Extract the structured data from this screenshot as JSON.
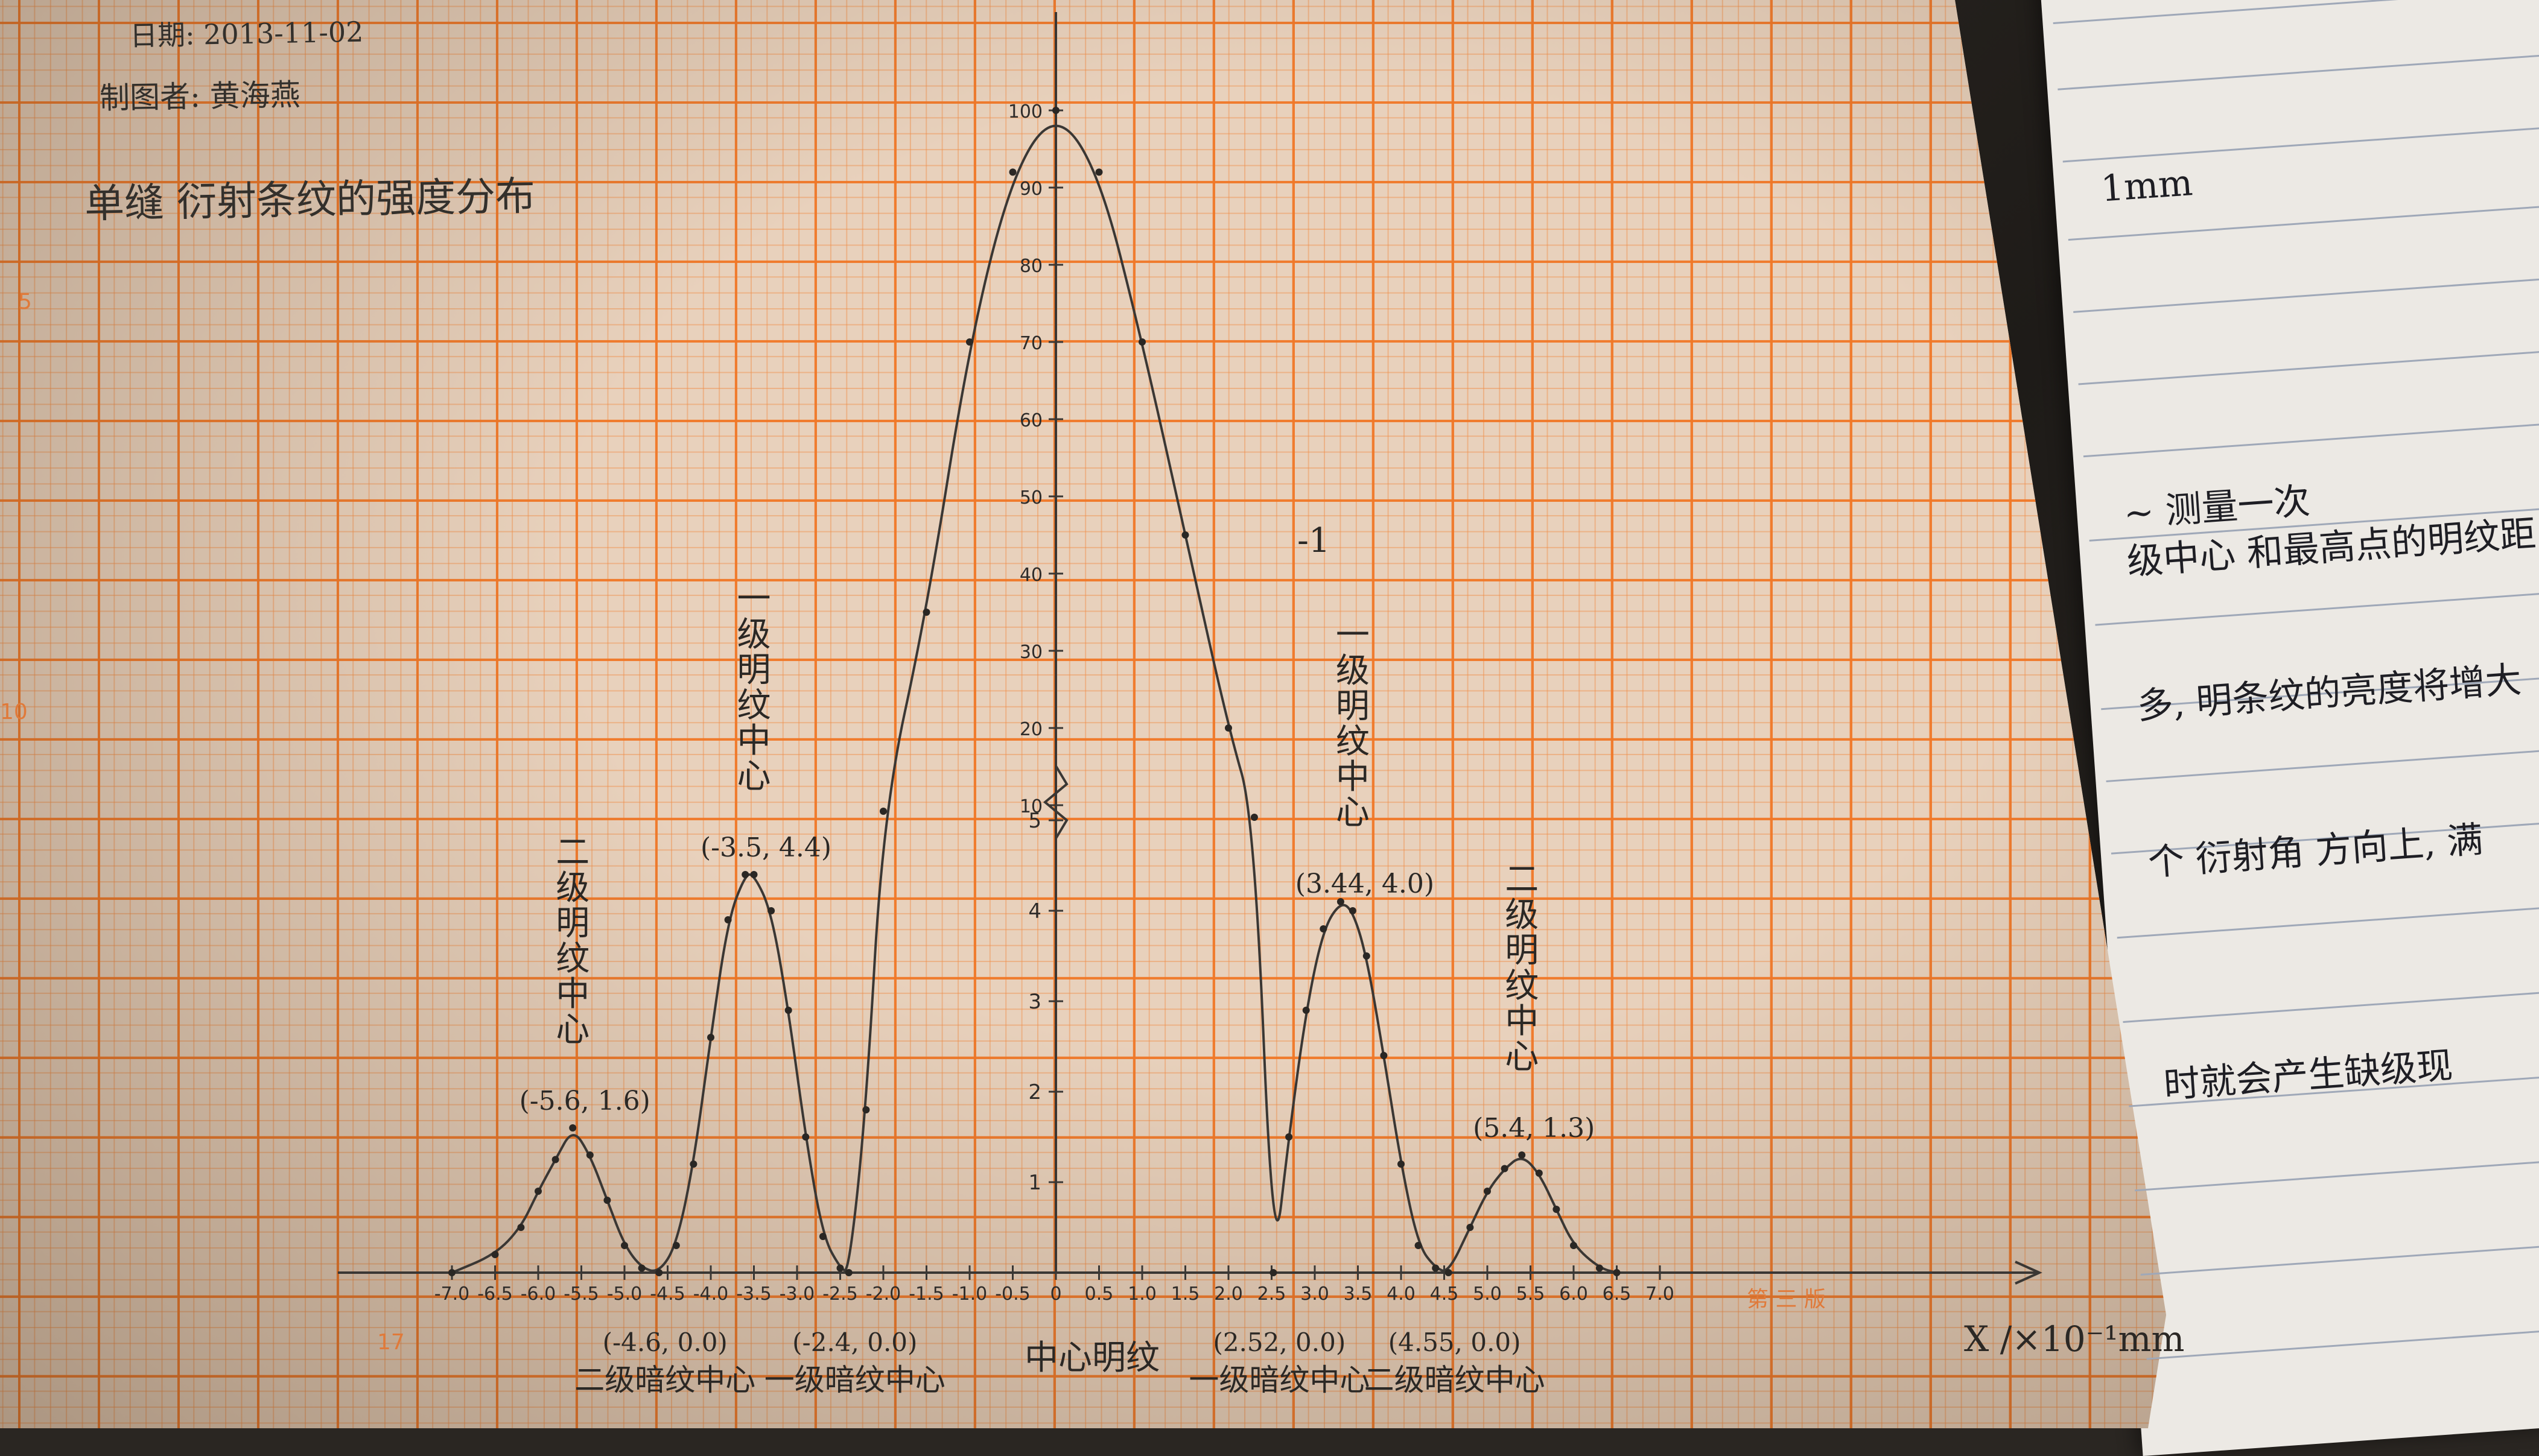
{
  "header": {
    "date": "日期: 2013-11-02",
    "author": "制图者: 黄海燕",
    "title": "单缝 衍射条纹的强度分布"
  },
  "paper_marks": {
    "edge_5": "5",
    "edge_10": "10",
    "corner_17": "17",
    "edition": "第 三 版"
  },
  "notebook": {
    "lines": [
      "1mm",
      "~ 测量一次",
      "级中心 和最高点的明纹距",
      "多, 明条纹的亮度将增大",
      "个 衍射角 方向上, 满",
      "时就会产生缺级现"
    ]
  },
  "colors": {
    "grid_major": "#f07828",
    "pencil": "#3a3734",
    "notebook_line": "#9fa8b8"
  },
  "chart_data": {
    "type": "line",
    "xlabel": "X /×10⁻¹mm",
    "ylabel": "",
    "xlim": [
      -7.0,
      7.0
    ],
    "ylim_lower": [
      0,
      5
    ],
    "ylim_upper": [
      10,
      100
    ],
    "x_ticks": [
      "-7.0",
      "-6.5",
      "-6.0",
      "-5.5",
      "-5.0",
      "-4.5",
      "-4.0",
      "-3.5",
      "-3.0",
      "-2.5",
      "-2.0",
      "-1.5",
      "-1.0",
      "-0.5",
      "0",
      "0.5",
      "1.0",
      "1.5",
      "2.0",
      "2.5",
      "3.0",
      "3.5",
      "4.0",
      "4.5",
      "5.0",
      "5.5",
      "6.0",
      "6.5",
      "7.0"
    ],
    "y_ticks_lower": [
      "1",
      "2",
      "3",
      "4",
      "5"
    ],
    "y_ticks_upper": [
      "10",
      "20",
      "30",
      "40",
      "50",
      "60",
      "70",
      "80",
      "90",
      "100"
    ],
    "series": [
      {
        "x": [
          -7.0,
          -6.5,
          -6.2,
          -6.0,
          -5.8,
          -5.6,
          -5.4,
          -5.2,
          -5.0,
          -4.8,
          -4.6,
          -4.4,
          -4.2,
          -4.0,
          -3.8,
          -3.6,
          -3.5,
          -3.3,
          -3.1,
          -2.9,
          -2.7,
          -2.5,
          -2.4,
          -2.2,
          -2.0,
          -1.5,
          -1.0,
          -0.5,
          0,
          0.5,
          1.0,
          1.5,
          2.0,
          2.3,
          2.52,
          2.7,
          2.9,
          3.1,
          3.3,
          3.44,
          3.6,
          3.8,
          4.0,
          4.2,
          4.4,
          4.55,
          4.8,
          5.0,
          5.2,
          5.4,
          5.6,
          5.8,
          6.0,
          6.3,
          6.5
        ],
        "y": [
          0.0,
          0.2,
          0.5,
          0.9,
          1.25,
          1.6,
          1.3,
          0.8,
          0.3,
          0.05,
          0.0,
          0.3,
          1.2,
          2.6,
          3.9,
          4.4,
          4.4,
          4.0,
          2.9,
          1.5,
          0.4,
          0.05,
          0.0,
          1.8,
          8,
          35,
          70,
          92,
          100,
          92,
          70,
          45,
          20,
          6,
          0.0,
          1.5,
          2.9,
          3.8,
          4.1,
          4.0,
          3.5,
          2.4,
          1.2,
          0.3,
          0.05,
          0.0,
          0.5,
          0.9,
          1.15,
          1.3,
          1.1,
          0.7,
          0.3,
          0.05,
          0.0
        ]
      }
    ],
    "axis_break": "between 5 and 10 on the y axis",
    "annotations": [
      {
        "text": "二级明纹中心",
        "x": -5.6,
        "y": 1.6,
        "label": "(-5.6, 1.6)"
      },
      {
        "text": "一级明纹中心",
        "x": -3.5,
        "y": 4.4,
        "label": "(-3.5, 4.4)"
      },
      {
        "text": "一级明纹中心",
        "x": 3.44,
        "y": 4.0,
        "label": "(3.44, 4.0)"
      },
      {
        "text": "二级明纹中心",
        "x": 5.4,
        "y": 1.3,
        "label": "(5.4, 1.3)"
      },
      {
        "text": "二级暗纹中心",
        "x": -4.6,
        "y": 0.0,
        "label": "(-4.6, 0.0)"
      },
      {
        "text": "一级暗纹中心",
        "x": -2.4,
        "y": 0.0,
        "label": "(-2.4, 0.0)"
      },
      {
        "text": "中心明纹",
        "x": 0,
        "y": 0.0,
        "label": ""
      },
      {
        "text": "一级暗纹中心",
        "x": 2.52,
        "y": 0.0,
        "label": "(2.52, 0.0)"
      },
      {
        "text": "二级暗纹中心",
        "x": 4.55,
        "y": 0.0,
        "label": "(4.55, 0.0)"
      }
    ],
    "stray_mark": "-1"
  }
}
